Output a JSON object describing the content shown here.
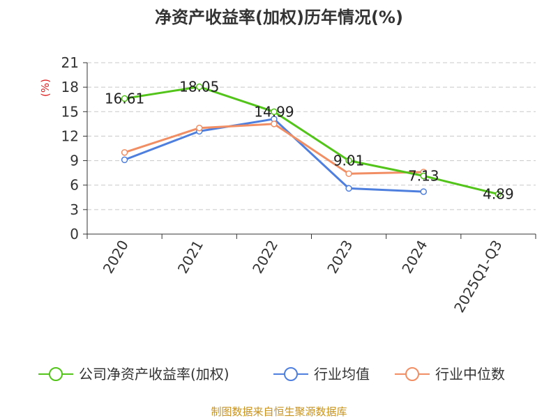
{
  "chart_data": {
    "type": "line",
    "title": "净资产收益率(加权)历年情况(%)",
    "ylabel": "(%)",
    "xlabel": "",
    "ylim": [
      0,
      21
    ],
    "yticks": [
      0,
      3,
      6,
      9,
      12,
      15,
      18,
      21
    ],
    "grid": true,
    "categories": [
      "2020",
      "2021",
      "2022",
      "2023",
      "2024",
      "2025Q1-Q3"
    ],
    "series": [
      {
        "name": "公司净资产收益率(加权)",
        "color": "#52c41a",
        "values": [
          16.61,
          18.05,
          14.99,
          9.01,
          7.13,
          4.89
        ],
        "labels": [
          "16.61",
          "18.05",
          "14.99",
          "9.01",
          "7.13",
          "4.89"
        ]
      },
      {
        "name": "行业均值",
        "color": "#4e7fde",
        "values": [
          9.1,
          12.6,
          14.1,
          5.6,
          5.2,
          null
        ]
      },
      {
        "name": "行业中位数",
        "color": "#f28e63",
        "values": [
          10.0,
          13.0,
          13.5,
          7.4,
          7.6,
          null
        ]
      }
    ],
    "legend_position": "bottom",
    "source": "制图数据来自恒生聚源数据库"
  }
}
